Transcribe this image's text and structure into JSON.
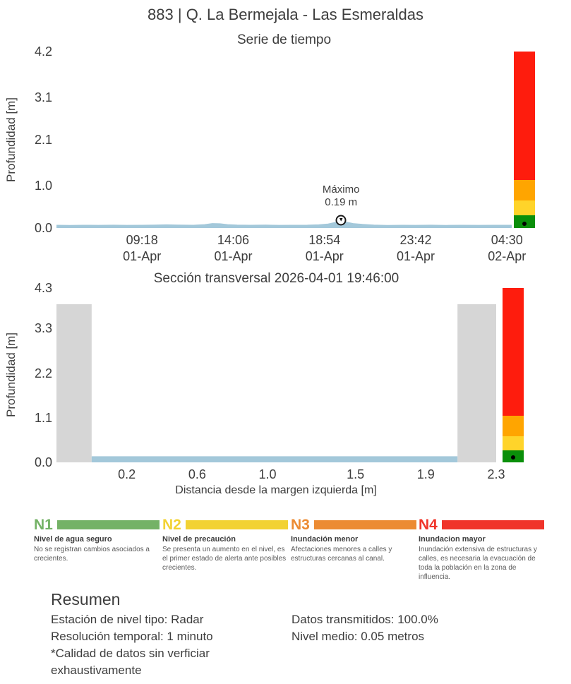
{
  "page_title": "883 | Q. La Bermejala - Las Esmeraldas",
  "chart_data": [
    {
      "type": "line",
      "title": "Serie de tiempo",
      "ylabel": "Profundidad [m]",
      "ylim": [
        0,
        4.2
      ],
      "yticks": [
        "0.0",
        "1.0",
        "2.1",
        "3.1",
        "4.2"
      ],
      "xlim": [
        4.8,
        28.75
      ],
      "xticks": [
        {
          "value": 9.3,
          "time": "09:18",
          "date": "01-Apr"
        },
        {
          "value": 14.1,
          "time": "14:06",
          "date": "01-Apr"
        },
        {
          "value": 18.9,
          "time": "18:54",
          "date": "01-Apr"
        },
        {
          "value": 23.7,
          "time": "23:42",
          "date": "01-Apr"
        },
        {
          "value": 28.5,
          "time": "04:30",
          "date": "02-Apr"
        }
      ],
      "series": [
        {
          "name": "Profundidad",
          "color": "#a3c8da",
          "points": [
            [
              4.8,
              0.05
            ],
            [
              5.5,
              0.047
            ],
            [
              6.2,
              0.05
            ],
            [
              7,
              0.048
            ],
            [
              7.8,
              0.052
            ],
            [
              8.5,
              0.049
            ],
            [
              9.3,
              0.05
            ],
            [
              10,
              0.055
            ],
            [
              10.6,
              0.06
            ],
            [
              11.2,
              0.055
            ],
            [
              12,
              0.05
            ],
            [
              12.6,
              0.065
            ],
            [
              13,
              0.09
            ],
            [
              13.4,
              0.085
            ],
            [
              13.8,
              0.065
            ],
            [
              14.3,
              0.055
            ],
            [
              15,
              0.05
            ],
            [
              15.8,
              0.053
            ],
            [
              16.5,
              0.048
            ],
            [
              17.2,
              0.05
            ],
            [
              18,
              0.052
            ],
            [
              18.6,
              0.06
            ],
            [
              19.1,
              0.08
            ],
            [
              19.5,
              0.12
            ],
            [
              19.77,
              0.19
            ],
            [
              20,
              0.13
            ],
            [
              20.4,
              0.09
            ],
            [
              20.9,
              0.07
            ],
            [
              21.5,
              0.055
            ],
            [
              22.2,
              0.045
            ],
            [
              23,
              0.05
            ],
            [
              23.7,
              0.048
            ],
            [
              24.5,
              0.052
            ],
            [
              25.3,
              0.047
            ],
            [
              26.1,
              0.05
            ],
            [
              27,
              0.048
            ],
            [
              27.9,
              0.051
            ],
            [
              28.75,
              0.05
            ]
          ]
        }
      ],
      "annotation": {
        "label": "Máximo",
        "value_text": "0.19 m",
        "x": 19.77,
        "y": 0.19
      },
      "alert_bar": {
        "segments": [
          {
            "level": "N1",
            "color": "#0a8f0a",
            "from": 0,
            "to": 0.3
          },
          {
            "level": "N2",
            "color": "#ffd42a",
            "from": 0.3,
            "to": 0.65
          },
          {
            "level": "N3",
            "color": "#ffa500",
            "from": 0.65,
            "to": 1.15
          },
          {
            "level": "N4",
            "color": "#fe1c0d",
            "from": 1.15,
            "to": 4.2
          }
        ],
        "marker_value": 0.1
      }
    },
    {
      "type": "area",
      "title": "Sección transversal 2026-04-01 19:46:00",
      "ylabel": "Profundidad [m]",
      "xlabel": "Distancia desde la margen izquierda [m]",
      "ylim": [
        0,
        4.3
      ],
      "yticks": [
        "0.0",
        "1.1",
        "2.2",
        "3.3",
        "4.3"
      ],
      "xlim": [
        -0.2,
        2.3
      ],
      "xticks": [
        "0.2",
        "0.6",
        "1.0",
        "1.5",
        "1.9",
        "2.3"
      ],
      "bank_color": "#d6d6d6",
      "banks": [
        {
          "from": -0.2,
          "to": 0.0,
          "height": 3.9
        },
        {
          "from": 2.08,
          "to": 2.3,
          "height": 3.9
        }
      ],
      "water": {
        "from": 0.0,
        "to": 2.08,
        "depth": 0.15,
        "color": "#a3c8da"
      },
      "alert_bar": {
        "segments": [
          {
            "level": "N1",
            "color": "#0a8f0a",
            "from": 0,
            "to": 0.3
          },
          {
            "level": "N2",
            "color": "#ffd42a",
            "from": 0.3,
            "to": 0.65
          },
          {
            "level": "N3",
            "color": "#ffa500",
            "from": 0.65,
            "to": 1.15
          },
          {
            "level": "N4",
            "color": "#fe1c0d",
            "from": 1.15,
            "to": 4.3
          }
        ],
        "marker_value": 0.12
      }
    }
  ],
  "legend": {
    "levels": [
      {
        "code": "N1",
        "color": "#74b266",
        "title": "Nivel de agua seguro",
        "desc": "No se registran cambios asociados a crecientes."
      },
      {
        "code": "N2",
        "color": "#f2d233",
        "title": "Nivel de precaución",
        "desc": "Se presenta un aumento en el nivel, es el primer estado de alerta ante posibles crecientes."
      },
      {
        "code": "N3",
        "color": "#ec8b33",
        "title": "Inundación menor",
        "desc": "Afectaciones menores a calles y estructuras cercanas al canal."
      },
      {
        "code": "N4",
        "color": "#f0342a",
        "title": "Inundacion mayor",
        "desc": "Inundación extensiva de estructuras y calles, es necesaria la evacuación de toda la población en la zona de influencia."
      }
    ]
  },
  "summary": {
    "heading": "Resumen",
    "left": [
      "Estación de nivel tipo: Radar",
      "Resolución temporal: 1 minuto",
      "*Calidad de datos sin verficiar exhaustivamente"
    ],
    "right": [
      "Datos transmitidos: 100.0%",
      "Nivel medio: 0.05 metros"
    ]
  }
}
